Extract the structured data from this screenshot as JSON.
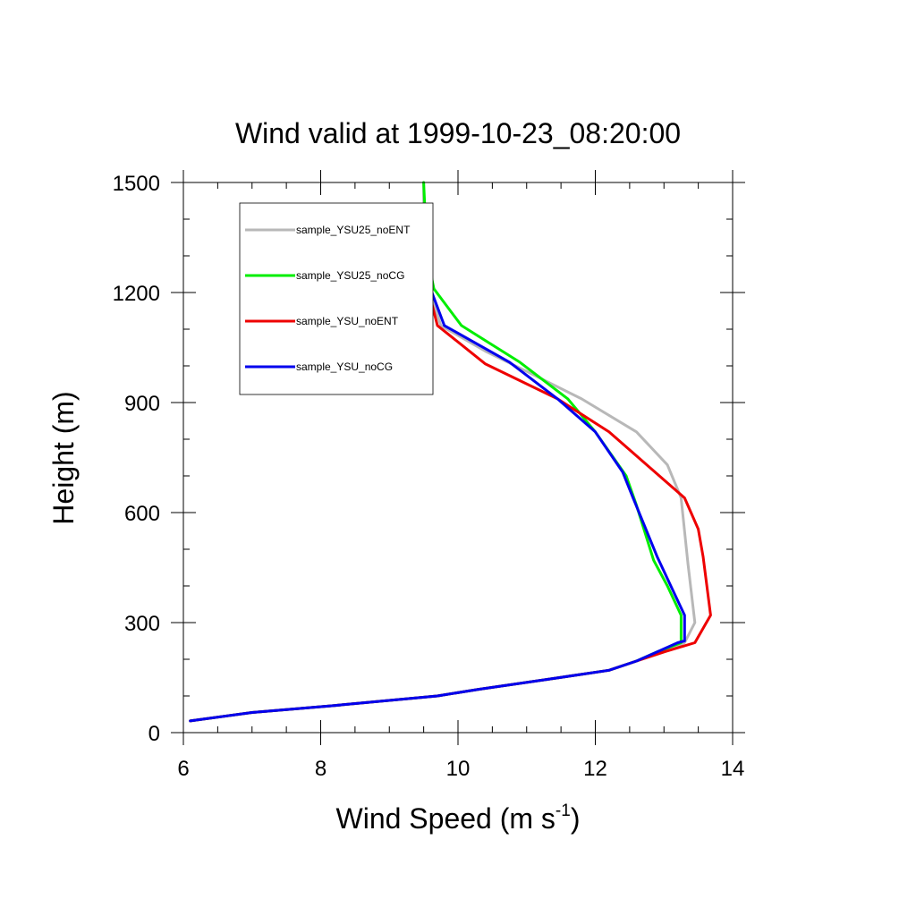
{
  "chart_data": {
    "type": "line",
    "title": "Wind valid at 1999-10-23_08:20:00",
    "xlabel": "Wind Speed (m s",
    "xlabel_sup": "-1",
    "xlabel_tail": ")",
    "ylabel": "Height (m)",
    "xlim": [
      6,
      14
    ],
    "ylim": [
      0,
      1500
    ],
    "xticks": [
      6,
      8,
      10,
      12,
      14
    ],
    "yticks": [
      0,
      300,
      600,
      900,
      1200,
      1500
    ],
    "grid": false,
    "legend_position": "top-left",
    "series": [
      {
        "name": "sample_YSU25_noENT",
        "color": "#b8b8b8",
        "points": [
          [
            6.1,
            32
          ],
          [
            7.0,
            55
          ],
          [
            8.2,
            74
          ],
          [
            9.7,
            100
          ],
          [
            10.3,
            118
          ],
          [
            11.3,
            145
          ],
          [
            12.2,
            170
          ],
          [
            12.6,
            195
          ],
          [
            13.0,
            220
          ],
          [
            13.3,
            245
          ],
          [
            13.45,
            300
          ],
          [
            13.35,
            460
          ],
          [
            13.25,
            640
          ],
          [
            13.05,
            730
          ],
          [
            12.6,
            820
          ],
          [
            11.8,
            910
          ],
          [
            11.0,
            985
          ],
          [
            10.4,
            1040
          ],
          [
            9.75,
            1110
          ],
          [
            9.6,
            1200
          ],
          [
            9.5,
            1300
          ],
          [
            9.5,
            1500
          ]
        ]
      },
      {
        "name": "sample_YSU25_noCG",
        "color": "#00ee00",
        "points": [
          [
            6.1,
            32
          ],
          [
            7.0,
            55
          ],
          [
            8.2,
            74
          ],
          [
            9.7,
            100
          ],
          [
            10.3,
            118
          ],
          [
            11.3,
            145
          ],
          [
            12.2,
            170
          ],
          [
            12.6,
            195
          ],
          [
            12.9,
            220
          ],
          [
            13.25,
            245
          ],
          [
            13.25,
            320
          ],
          [
            13.05,
            400
          ],
          [
            12.85,
            470
          ],
          [
            12.6,
            620
          ],
          [
            12.45,
            700
          ],
          [
            12.0,
            820
          ],
          [
            11.6,
            910
          ],
          [
            10.9,
            1010
          ],
          [
            10.05,
            1110
          ],
          [
            9.65,
            1210
          ],
          [
            9.55,
            1300
          ],
          [
            9.5,
            1500
          ]
        ]
      },
      {
        "name": "sample_YSU_noENT",
        "color": "#ee0000",
        "points": [
          [
            6.1,
            32
          ],
          [
            7.0,
            55
          ],
          [
            8.2,
            74
          ],
          [
            9.7,
            100
          ],
          [
            10.3,
            118
          ],
          [
            11.3,
            145
          ],
          [
            12.2,
            170
          ],
          [
            12.6,
            195
          ],
          [
            13.0,
            220
          ],
          [
            13.45,
            245
          ],
          [
            13.68,
            320
          ],
          [
            13.57,
            480
          ],
          [
            13.5,
            555
          ],
          [
            13.3,
            640
          ],
          [
            12.75,
            730
          ],
          [
            12.2,
            820
          ],
          [
            11.45,
            910
          ],
          [
            10.4,
            1005
          ],
          [
            9.7,
            1110
          ],
          [
            9.55,
            1220
          ],
          [
            9.5,
            1330
          ]
        ]
      },
      {
        "name": "sample_YSU_noCG",
        "color": "#0000ee",
        "points": [
          [
            6.1,
            32
          ],
          [
            7.0,
            55
          ],
          [
            8.2,
            74
          ],
          [
            9.7,
            100
          ],
          [
            10.3,
            118
          ],
          [
            11.3,
            145
          ],
          [
            12.2,
            170
          ],
          [
            12.6,
            195
          ],
          [
            12.9,
            220
          ],
          [
            13.2,
            245
          ],
          [
            13.3,
            250
          ],
          [
            13.3,
            320
          ],
          [
            13.1,
            400
          ],
          [
            12.9,
            480
          ],
          [
            12.55,
            640
          ],
          [
            12.4,
            710
          ],
          [
            12.0,
            820
          ],
          [
            11.45,
            910
          ],
          [
            10.75,
            1010
          ],
          [
            9.8,
            1110
          ],
          [
            9.6,
            1210
          ]
        ]
      }
    ]
  }
}
